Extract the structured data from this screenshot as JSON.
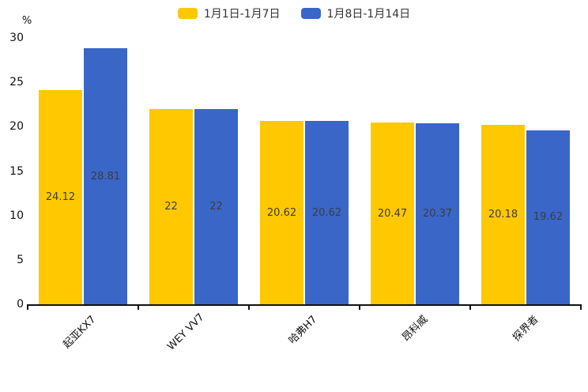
{
  "chart_data": {
    "type": "bar",
    "title": "",
    "xlabel": "",
    "ylabel": "%",
    "categories": [
      "起亚KX7",
      "WEY VV7",
      "哈弗H7",
      "昂科威",
      "探界者"
    ],
    "series": [
      {
        "name": "1月1日-1月7日",
        "color": "#ffc800",
        "values": [
          24.12,
          22,
          20.62,
          20.47,
          20.18
        ]
      },
      {
        "name": "1月8日-1月14日",
        "color": "#3a66c8",
        "values": [
          28.81,
          22,
          20.62,
          20.37,
          19.62
        ]
      }
    ],
    "ylim": [
      0,
      30
    ],
    "yticks": [
      0,
      5,
      10,
      15,
      20,
      25,
      30
    ],
    "grid": false,
    "legend_position": "top",
    "value_labels_visible": true
  }
}
